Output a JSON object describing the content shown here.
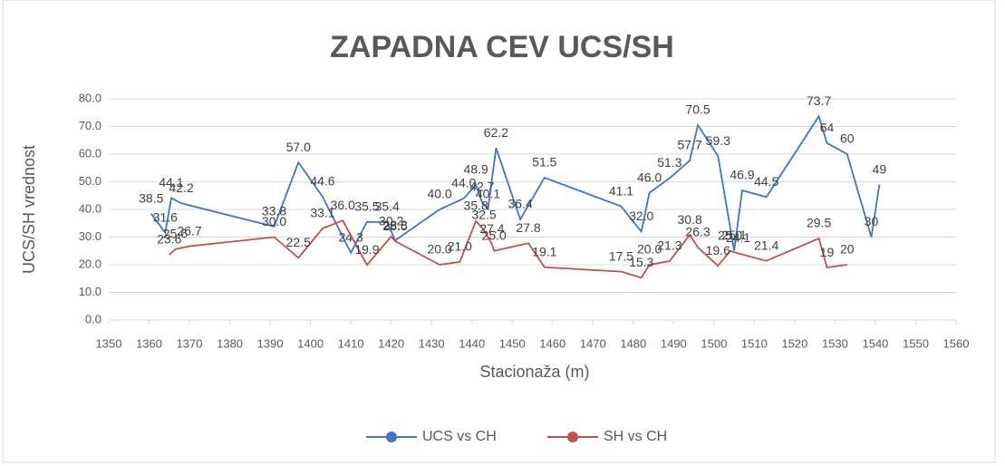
{
  "chart_data": {
    "type": "line",
    "title": "ZAPADNA CEV UCS/SH",
    "x_label": "Stacionaža (m)",
    "y_label": "UCS/SH vrednost",
    "xlim": [
      1350,
      1560
    ],
    "xticks": [
      1350,
      1360,
      1370,
      1380,
      1390,
      1400,
      1410,
      1420,
      1430,
      1440,
      1450,
      1460,
      1470,
      1480,
      1490,
      1500,
      1510,
      1520,
      1530,
      1540,
      1550,
      1560
    ],
    "ylim": [
      0,
      80
    ],
    "yticks": [
      {
        "value": 0,
        "label": "0.0"
      },
      {
        "value": 10,
        "label": "10.0"
      },
      {
        "value": 20,
        "label": "20.0"
      },
      {
        "value": 30,
        "label": "30.0"
      },
      {
        "value": 40,
        "label": "40.0"
      },
      {
        "value": 50,
        "label": "50.0"
      },
      {
        "value": 60,
        "label": "60.0"
      },
      {
        "value": 70,
        "label": "70.0"
      },
      {
        "value": 80,
        "label": "80.0"
      }
    ],
    "grid": true,
    "legend": "bottom",
    "series": [
      {
        "name": "UCS vs CH",
        "color": "#4472c4",
        "x": [
          1360.5,
          1364,
          1365.5,
          1368,
          1391,
          1397,
          1403,
          1410,
          1414,
          1419,
          1421,
          1432,
          1438,
          1441,
          1442.5,
          1444,
          1446,
          1452,
          1458,
          1477,
          1482,
          1484,
          1489,
          1494,
          1496,
          1501,
          1505,
          1507,
          1513,
          1526,
          1528,
          1533,
          1539,
          1541
        ],
        "values": [
          38.5,
          31.6,
          44.1,
          42.2,
          33.8,
          57.0,
          44.6,
          24.3,
          35.5,
          35.4,
          28.8,
          40.0,
          44.0,
          48.9,
          42.7,
          40.1,
          62.2,
          36.4,
          51.5,
          41.1,
          32.0,
          46.0,
          51.3,
          57.7,
          70.5,
          59.3,
          25.1,
          46.9,
          44.5,
          73.7,
          64,
          60,
          30,
          49
        ],
        "value_labels": [
          "38.5",
          "31.6",
          "44.1",
          "42.2",
          "33.8",
          "57.0",
          "44.6",
          "24.3",
          "35.5",
          "35.4",
          "28.8",
          "40.0",
          "44.0",
          "48.9",
          "42.7",
          "40.1",
          "62.2",
          "36.4",
          "51.5",
          "41.1",
          "32.0",
          "46.0",
          "51.3",
          "57.7",
          "70.5",
          "59.3",
          "25.1",
          "46.9",
          "44.5",
          "73.7",
          "64",
          "60",
          "30",
          "49"
        ]
      },
      {
        "name": "SH vs CH",
        "color": "#c0504d",
        "x": [
          1365,
          1366.5,
          1370,
          1391,
          1397,
          1403,
          1408,
          1414,
          1420,
          1421,
          1432,
          1437,
          1441,
          1443,
          1445,
          1445.5,
          1454,
          1458,
          1477,
          1482,
          1484,
          1489,
          1494,
          1496,
          1501,
          1504,
          1506,
          1513,
          1526,
          1528,
          1533
        ],
        "values": [
          23.6,
          25.6,
          26.7,
          30.0,
          22.5,
          33.1,
          36.0,
          19.9,
          30.2,
          28.5,
          20.0,
          21.0,
          35.8,
          32.5,
          27.4,
          25.0,
          27.8,
          19.1,
          17.5,
          15.3,
          20.0,
          21.3,
          30.8,
          26.3,
          19.6,
          25.0,
          24.1,
          21.4,
          29.5,
          19,
          20
        ],
        "value_labels": [
          "23.6",
          "25.6",
          "26.7",
          "30.0",
          "22.5",
          "33.1",
          "36.0",
          "19.9",
          "30.2",
          "28.5",
          "20.0",
          "21.0",
          "35.8",
          "32.5",
          "27.4",
          "25.0",
          "27.8",
          "19.1",
          "17.5",
          "15.3",
          "20.0",
          "21.3",
          "30.8",
          "26.3",
          "19.6",
          "25.0",
          "24.1",
          "21.4",
          "29.5",
          "19",
          "20"
        ]
      }
    ]
  }
}
